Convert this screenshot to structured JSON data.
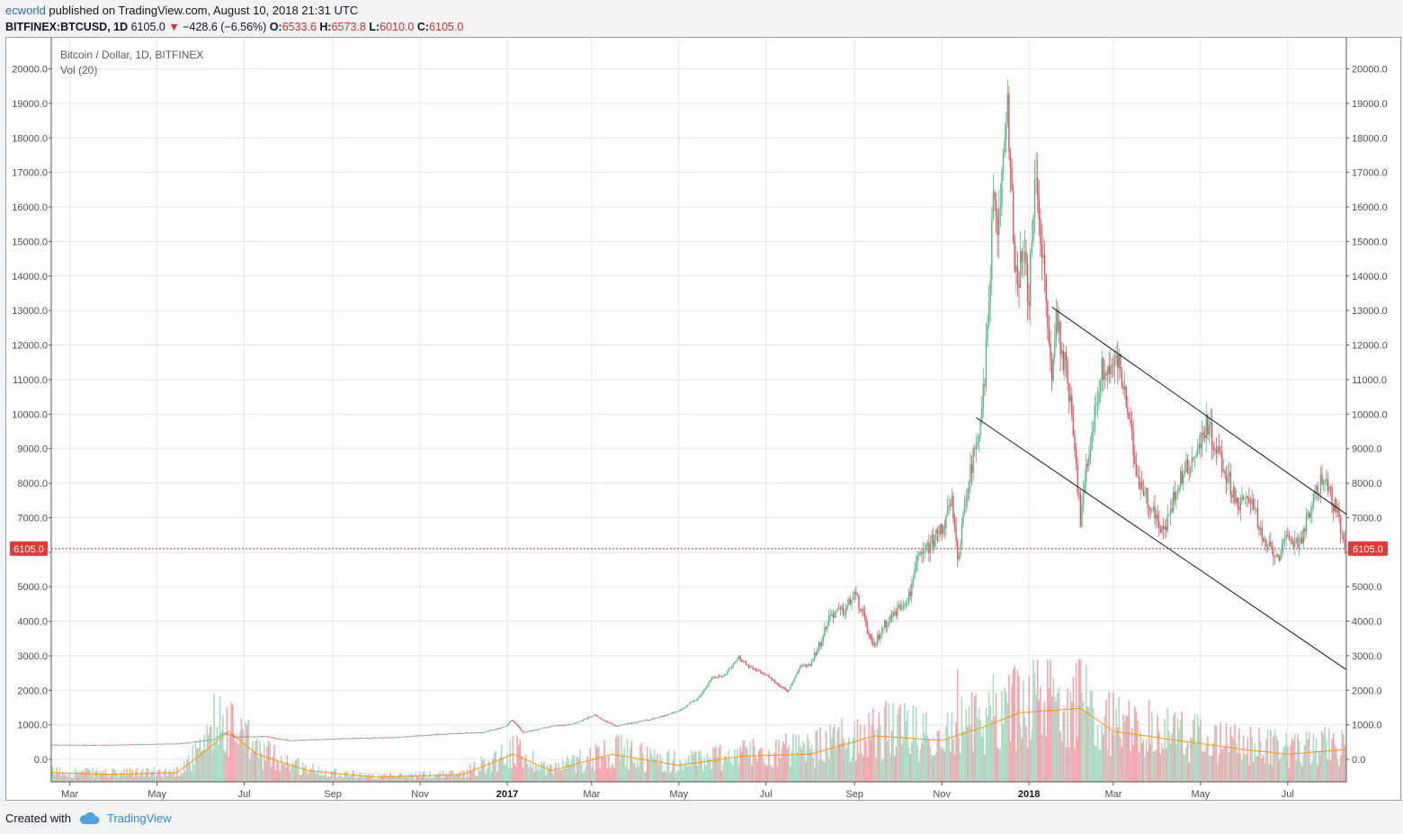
{
  "header": {
    "publisher_user": "ecworld",
    "published_text": " published on TradingView.com, August 10, 2018 21:31 UTC"
  },
  "symbol_bar": {
    "symbol": "BITFINEX:BTCUSD, 1D",
    "last": "6105.0",
    "change": "−428.6 (−6.56%)",
    "open_label": "O:",
    "open": "6533.6",
    "high_label": "H:",
    "high": "6573.8",
    "low_label": "L:",
    "low": "6010.0",
    "close_label": "C:",
    "close": "6105.0"
  },
  "legend": {
    "title": "Bitcoin / Dollar, 1D, BITFINEX",
    "volume": "Vol (20)"
  },
  "footer": {
    "created_with": "Created with",
    "brand": "TradingView"
  },
  "colors": {
    "up": "#53b987",
    "down": "#eb4d5c",
    "vol_up": "#a9dcc3",
    "vol_down": "#f5a6ae",
    "vol_ma": "#ff9800",
    "grid": "#e0e6ec",
    "price_line": "#e53935",
    "trendline": "#131722",
    "link": "#2a8bd8"
  },
  "chart_data": {
    "type": "candlestick",
    "title": "Bitcoin / Dollar, 1D, BITFINEX",
    "ylim": [
      -650,
      20900
    ],
    "yticks": [
      0,
      1000,
      2000,
      3000,
      4000,
      5000,
      6000,
      7000,
      8000,
      9000,
      10000,
      11000,
      12000,
      13000,
      14000,
      15000,
      16000,
      17000,
      18000,
      19000,
      20000
    ],
    "ytick_labels": [
      "0.0",
      "1000.0",
      "2000.0",
      "3000.0",
      "4000.0",
      "5000.0",
      "6000.0",
      "7000.0",
      "8000.0",
      "9000.0",
      "10000.0",
      "11000.0",
      "12000.0",
      "13000.0",
      "14000.0",
      "15000.0",
      "16000.0",
      "17000.0",
      "18000.0",
      "19000.0",
      "20000.0"
    ],
    "xlim": [
      "2016-02-17",
      "2018-08-11"
    ],
    "xticks": [
      {
        "date": "2016-03-01",
        "label": "Mar",
        "bold": false
      },
      {
        "date": "2016-05-01",
        "label": "May",
        "bold": false
      },
      {
        "date": "2016-07-01",
        "label": "Jul",
        "bold": false
      },
      {
        "date": "2016-09-01",
        "label": "Sep",
        "bold": false
      },
      {
        "date": "2016-11-01",
        "label": "Nov",
        "bold": false
      },
      {
        "date": "2017-01-01",
        "label": "2017",
        "bold": true
      },
      {
        "date": "2017-03-01",
        "label": "Mar",
        "bold": false
      },
      {
        "date": "2017-05-01",
        "label": "May",
        "bold": false
      },
      {
        "date": "2017-07-01",
        "label": "Jul",
        "bold": false
      },
      {
        "date": "2017-09-01",
        "label": "Sep",
        "bold": false
      },
      {
        "date": "2017-11-01",
        "label": "Nov",
        "bold": false
      },
      {
        "date": "2018-01-01",
        "label": "2018",
        "bold": true
      },
      {
        "date": "2018-03-01",
        "label": "Mar",
        "bold": false
      },
      {
        "date": "2018-05-01",
        "label": "May",
        "bold": false
      },
      {
        "date": "2018-07-01",
        "label": "Jul",
        "bold": false
      }
    ],
    "last_price": 6105.0,
    "last_price_label": "6105.0",
    "close_path": [
      [
        "2016-02-17",
        420
      ],
      [
        "2016-03-15",
        415
      ],
      [
        "2016-04-15",
        430
      ],
      [
        "2016-05-15",
        455
      ],
      [
        "2016-06-01",
        530
      ],
      [
        "2016-06-10",
        580
      ],
      [
        "2016-06-17",
        760
      ],
      [
        "2016-06-25",
        650
      ],
      [
        "2016-07-15",
        665
      ],
      [
        "2016-08-02",
        540
      ],
      [
        "2016-08-15",
        570
      ],
      [
        "2016-09-15",
        610
      ],
      [
        "2016-10-15",
        640
      ],
      [
        "2016-11-15",
        730
      ],
      [
        "2016-12-15",
        780
      ],
      [
        "2016-12-31",
        960
      ],
      [
        "2017-01-04",
        1140
      ],
      [
        "2017-01-12",
        780
      ],
      [
        "2017-02-01",
        960
      ],
      [
        "2017-02-15",
        1010
      ],
      [
        "2017-03-03",
        1280
      ],
      [
        "2017-03-18",
        960
      ],
      [
        "2017-04-01",
        1080
      ],
      [
        "2017-04-15",
        1190
      ],
      [
        "2017-05-01",
        1400
      ],
      [
        "2017-05-15",
        1800
      ],
      [
        "2017-05-25",
        2400
      ],
      [
        "2017-06-01",
        2400
      ],
      [
        "2017-06-12",
        2950
      ],
      [
        "2017-06-20",
        2650
      ],
      [
        "2017-07-01",
        2450
      ],
      [
        "2017-07-16",
        1950
      ],
      [
        "2017-07-25",
        2700
      ],
      [
        "2017-08-01",
        2750
      ],
      [
        "2017-08-08",
        3400
      ],
      [
        "2017-08-15",
        4200
      ],
      [
        "2017-08-25",
        4300
      ],
      [
        "2017-09-01",
        4800
      ],
      [
        "2017-09-05",
        4400
      ],
      [
        "2017-09-14",
        3200
      ],
      [
        "2017-09-20",
        3800
      ],
      [
        "2017-10-01",
        4350
      ],
      [
        "2017-10-10",
        4800
      ],
      [
        "2017-10-13",
        5600
      ],
      [
        "2017-10-20",
        6000
      ],
      [
        "2017-11-01",
        6700
      ],
      [
        "2017-11-08",
        7400
      ],
      [
        "2017-11-12",
        5800
      ],
      [
        "2017-11-20",
        8100
      ],
      [
        "2017-11-28",
        9900
      ],
      [
        "2017-12-01",
        10900
      ],
      [
        "2017-12-07",
        16100
      ],
      [
        "2017-12-10",
        15000
      ],
      [
        "2017-12-17",
        19300
      ],
      [
        "2017-12-22",
        13800
      ],
      [
        "2017-12-28",
        14500
      ],
      [
        "2018-01-01",
        13500
      ],
      [
        "2018-01-06",
        17100
      ],
      [
        "2018-01-10",
        14800
      ],
      [
        "2018-01-17",
        10900
      ],
      [
        "2018-01-20",
        12900
      ],
      [
        "2018-01-31",
        10200
      ],
      [
        "2018-02-06",
        6900
      ],
      [
        "2018-02-10",
        8300
      ],
      [
        "2018-02-20",
        11200
      ],
      [
        "2018-03-05",
        11500
      ],
      [
        "2018-03-18",
        8200
      ],
      [
        "2018-04-01",
        6900
      ],
      [
        "2018-04-06",
        6600
      ],
      [
        "2018-04-15",
        8000
      ],
      [
        "2018-05-01",
        9100
      ],
      [
        "2018-05-05",
        9800
      ],
      [
        "2018-05-15",
        8700
      ],
      [
        "2018-05-28",
        7300
      ],
      [
        "2018-06-06",
        7650
      ],
      [
        "2018-06-13",
        6300
      ],
      [
        "2018-06-24",
        5900
      ],
      [
        "2018-07-01",
        6350
      ],
      [
        "2018-07-10",
        6350
      ],
      [
        "2018-07-18",
        7350
      ],
      [
        "2018-07-25",
        8200
      ],
      [
        "2018-07-31",
        7700
      ],
      [
        "2018-08-05",
        7000
      ],
      [
        "2018-08-10",
        6105
      ]
    ],
    "volume": {
      "ma_label": "Vol (20)",
      "path": [
        [
          "2016-02-17",
          0.1
        ],
        [
          "2016-04-01",
          0.08
        ],
        [
          "2016-05-15",
          0.1
        ],
        [
          "2016-06-05",
          0.35
        ],
        [
          "2016-06-20",
          0.55
        ],
        [
          "2016-07-10",
          0.3
        ],
        [
          "2016-08-15",
          0.12
        ],
        [
          "2016-10-01",
          0.05
        ],
        [
          "2016-12-01",
          0.08
        ],
        [
          "2017-01-05",
          0.3
        ],
        [
          "2017-02-01",
          0.12
        ],
        [
          "2017-03-15",
          0.3
        ],
        [
          "2017-05-01",
          0.18
        ],
        [
          "2017-06-15",
          0.28
        ],
        [
          "2017-08-01",
          0.3
        ],
        [
          "2017-09-15",
          0.5
        ],
        [
          "2017-11-01",
          0.45
        ],
        [
          "2017-12-01",
          0.6
        ],
        [
          "2017-12-25",
          0.75
        ],
        [
          "2018-02-06",
          0.8
        ],
        [
          "2018-03-01",
          0.55
        ],
        [
          "2018-04-15",
          0.45
        ],
        [
          "2018-06-01",
          0.35
        ],
        [
          "2018-07-01",
          0.3
        ],
        [
          "2018-08-10",
          0.35
        ]
      ],
      "spikes": [
        [
          "2016-06-10",
          0.72
        ],
        [
          "2016-06-14",
          0.7
        ],
        [
          "2016-06-22",
          0.65
        ],
        [
          "2017-09-14",
          0.6
        ],
        [
          "2017-11-12",
          0.92
        ],
        [
          "2017-12-07",
          0.88
        ],
        [
          "2017-12-22",
          0.95
        ],
        [
          "2018-02-06",
          1.0
        ],
        [
          "2018-01-17",
          0.7
        ],
        [
          "2018-03-18",
          0.5
        ],
        [
          "2018-08-01",
          0.35
        ]
      ]
    },
    "trendlines": [
      {
        "from": [
          "2018-01-17",
          13100
        ],
        "to": [
          "2018-08-11",
          7100
        ]
      },
      {
        "from": [
          "2017-11-25",
          9900
        ],
        "to": [
          "2018-08-11",
          2600
        ]
      }
    ]
  }
}
